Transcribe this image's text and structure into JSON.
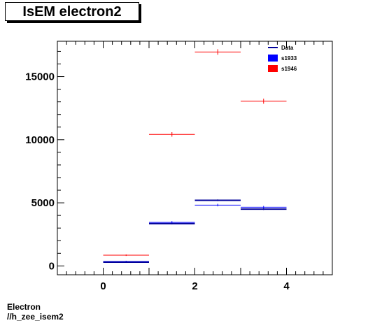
{
  "title": "IsEM electron2",
  "footer": {
    "line1": "Electron",
    "line2": "//h_zee_isem2"
  },
  "chart_data": {
    "type": "scatter",
    "title": "IsEM electron2",
    "xlim": [
      -1,
      5
    ],
    "ylim": [
      -700,
      17800
    ],
    "x_ticks": [
      0,
      2,
      4
    ],
    "y_ticks": [
      0,
      5000,
      10000,
      15000
    ],
    "grid": false,
    "legend_position": "top-right",
    "series": [
      {
        "name": "Data",
        "color": "#000099",
        "style": "line",
        "points": [
          {
            "x": 0.5,
            "y": 300,
            "xerr": 0.5,
            "yerr": 50
          },
          {
            "x": 1.5,
            "y": 3350,
            "xerr": 0.5,
            "yerr": 60
          },
          {
            "x": 2.5,
            "y": 5200,
            "xerr": 0.5,
            "yerr": 70
          },
          {
            "x": 3.5,
            "y": 4500,
            "xerr": 0.5,
            "yerr": 70
          }
        ]
      },
      {
        "name": "s1933",
        "color": "#0000ff",
        "style": "box",
        "points": [
          {
            "x": 0.5,
            "y": 350,
            "xerr": 0.5,
            "yerr": 60
          },
          {
            "x": 1.5,
            "y": 3450,
            "xerr": 0.5,
            "yerr": 100
          },
          {
            "x": 2.5,
            "y": 4820,
            "xerr": 0.5,
            "yerr": 100
          },
          {
            "x": 3.5,
            "y": 4650,
            "xerr": 0.5,
            "yerr": 100
          }
        ]
      },
      {
        "name": "s1946",
        "color": "#ff0000",
        "style": "box",
        "points": [
          {
            "x": 0.5,
            "y": 850,
            "xerr": 0.5,
            "yerr": 60
          },
          {
            "x": 1.5,
            "y": 10420,
            "xerr": 0.5,
            "yerr": 180
          },
          {
            "x": 2.5,
            "y": 16950,
            "xerr": 0.5,
            "yerr": 220
          },
          {
            "x": 3.5,
            "y": 13050,
            "xerr": 0.5,
            "yerr": 200
          }
        ]
      }
    ]
  }
}
